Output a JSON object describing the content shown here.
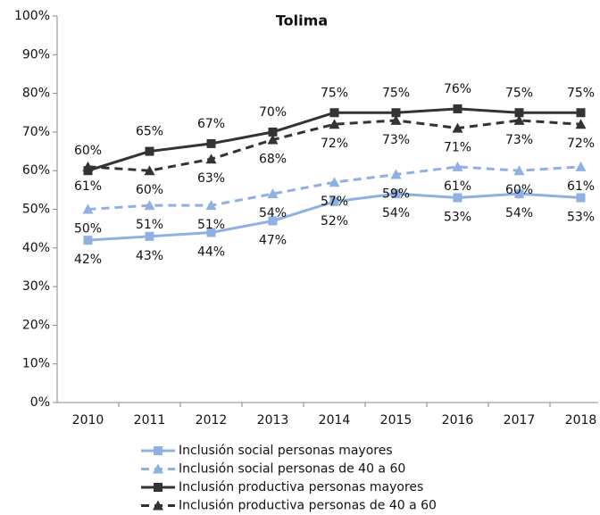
{
  "chart_data": {
    "type": "line",
    "title": "Tolima",
    "categories": [
      "2010",
      "2011",
      "2012",
      "2013",
      "2014",
      "2015",
      "2016",
      "2017",
      "2018"
    ],
    "ylim": [
      0,
      100
    ],
    "yticks": [
      {
        "value": 0,
        "label": "0%"
      },
      {
        "value": 10,
        "label": "10%"
      },
      {
        "value": 20,
        "label": "20%"
      },
      {
        "value": 30,
        "label": "30%"
      },
      {
        "value": 40,
        "label": "40%"
      },
      {
        "value": 50,
        "label": "50%"
      },
      {
        "value": 60,
        "label": "60%"
      },
      {
        "value": 70,
        "label": "70%"
      },
      {
        "value": 80,
        "label": "80%"
      },
      {
        "value": 90,
        "label": "90%"
      },
      {
        "value": 100,
        "label": "100%"
      }
    ],
    "grid": false,
    "series": [
      {
        "name": "Inclusión social personas mayores",
        "color": "#8fb0e0",
        "dashed": false,
        "marker": "square",
        "values": [
          42,
          43,
          44,
          47,
          52,
          54,
          53,
          54,
          53
        ],
        "value_labels": [
          "42%",
          "43%",
          "44%",
          "47%",
          "52%",
          "54%",
          "53%",
          "54%",
          "53%"
        ]
      },
      {
        "name": "Inclusión social personas de 40 a 60",
        "color": "#8fb0e0",
        "dashed": true,
        "marker": "triangle",
        "values": [
          50,
          51,
          51,
          54,
          57,
          59,
          61,
          60,
          61
        ],
        "value_labels": [
          "50%",
          "51%",
          "51%",
          "54%",
          "57%",
          "59%",
          "61%",
          "60%",
          "61%"
        ]
      },
      {
        "name": "Inclusión productiva personas mayores",
        "color": "#333333",
        "dashed": false,
        "marker": "square",
        "values": [
          60,
          65,
          67,
          70,
          75,
          75,
          76,
          75,
          75
        ],
        "value_labels": [
          "60%",
          "65%",
          "67%",
          "70%",
          "75%",
          "75%",
          "76%",
          "75%",
          "75%"
        ]
      },
      {
        "name": "Inclusión productiva personas de 40 a 60",
        "color": "#333333",
        "dashed": true,
        "marker": "triangle",
        "values": [
          61,
          60,
          63,
          68,
          72,
          73,
          71,
          73,
          72
        ],
        "value_labels": [
          "61%",
          "60%",
          "63%",
          "68%",
          "72%",
          "73%",
          "71%",
          "73%",
          "72%"
        ]
      }
    ]
  }
}
